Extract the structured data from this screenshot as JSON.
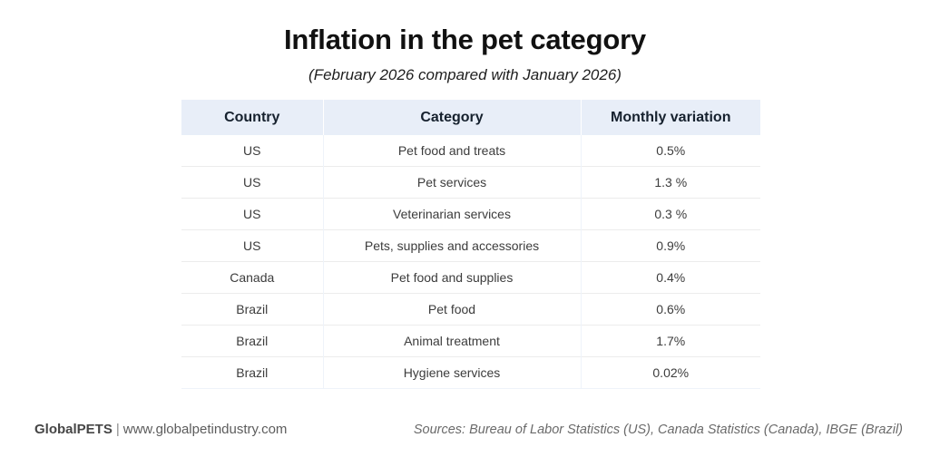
{
  "header": {
    "title": "Inflation in the pet category",
    "subtitle": "(February 2026 compared with January 2026)"
  },
  "table": {
    "columns": [
      "Country",
      "Category",
      "Monthly variation"
    ],
    "rows": [
      {
        "country": "US",
        "category": "Pet food and treats",
        "variation": "0.5%"
      },
      {
        "country": "US",
        "category": "Pet services",
        "variation": "1.3 %"
      },
      {
        "country": "US",
        "category": "Veterinarian services",
        "variation": "0.3 %"
      },
      {
        "country": "US",
        "category": "Pets, supplies and accessories",
        "variation": "0.9%"
      },
      {
        "country": "Canada",
        "category": "Pet food and supplies",
        "variation": "0.4%"
      },
      {
        "country": "Brazil",
        "category": "Pet food",
        "variation": "0.6%"
      },
      {
        "country": "Brazil",
        "category": "Animal treatment",
        "variation": "1.7%"
      },
      {
        "country": "Brazil",
        "category": "Hygiene services",
        "variation": "0.02%"
      }
    ]
  },
  "footer": {
    "brand": "GlobalPETS",
    "separator": "|",
    "website": "www.globalpetindustry.com",
    "sources": "Sources: Bureau of Labor Statistics (US), Canada Statistics (Canada), IBGE (Brazil)"
  },
  "colors": {
    "header_bg": "#e8eef8",
    "row_border": "#ececec",
    "column_border": "#eef3fa",
    "title_text": "#111111",
    "cell_text": "#3c3c3c",
    "footer_text": "#5c5c5c"
  },
  "chart_data": {
    "type": "table",
    "title": "Inflation in the pet category",
    "subtitle": "(February 2026 compared with January 2026)",
    "columns": [
      "Country",
      "Category",
      "Monthly variation"
    ],
    "rows": [
      [
        "US",
        "Pet food and treats",
        "0.5%"
      ],
      [
        "US",
        "Pet services",
        "1.3 %"
      ],
      [
        "US",
        "Veterinarian services",
        "0.3 %"
      ],
      [
        "US",
        "Pets, supplies and accessories",
        "0.9%"
      ],
      [
        "Canada",
        "Pet food and supplies",
        "0.4%"
      ],
      [
        "Brazil",
        "Pet food",
        "0.6%"
      ],
      [
        "Brazil",
        "Animal treatment",
        "1.7%"
      ],
      [
        "Brazil",
        "Hygiene services",
        "0.02%"
      ]
    ],
    "values_numeric_percent": [
      0.5,
      1.3,
      0.3,
      0.9,
      0.4,
      0.6,
      1.7,
      0.02
    ]
  }
}
